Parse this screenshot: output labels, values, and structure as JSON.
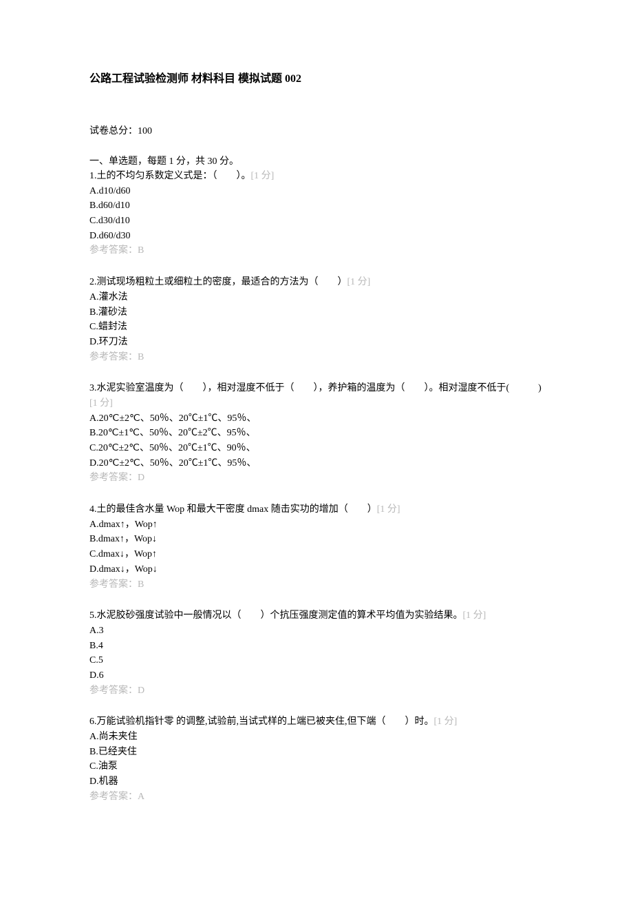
{
  "title": "公路工程试验检测师 材料科目 模拟试题 002",
  "totalScore": "试卷总分：100",
  "sectionHeader": "一、单选题，每题 1 分，共 30 分。",
  "questions": [
    {
      "text": "1.土的不均匀系数定义式是：（　　）。",
      "score": "[1 分]",
      "options": [
        "A.d10/d60",
        "B.d60/d10",
        "C.d30/d10",
        "D.d60/d30"
      ],
      "answer": "参考答案：B"
    },
    {
      "text": "2.测试现场粗粒土或细粒土的密度，最适合的方法为（　　）",
      "score": "[1 分]",
      "options": [
        "A.灌水法",
        "B.灌砂法",
        "C.蜡封法",
        "D.环刀法"
      ],
      "answer": "参考答案：B"
    },
    {
      "text": "3.水泥实验室温度为（　　），相对湿度不低于（　　），养护箱的温度为（　　）。相对湿度不低于(　　　)",
      "score": "[1 分]",
      "options": [
        "A.20℃±2℃、50％、20℃±1℃、95％、",
        "B.20℃±1℃、50％、20℃±2℃、95％、",
        "C.20℃±2℃、50％、20℃±1℃、90％、",
        "D.20℃±2℃、50％、20℃±1℃、95％、"
      ],
      "answer": "参考答案：D"
    },
    {
      "text": "4.土的最佳含水量 Wop 和最大干密度 dmax 随击实功的增加（　　）",
      "score": "[1 分]",
      "options": [
        "A.dmax↑，Wop↑",
        "B.dmax↑，Wop↓",
        "C.dmax↓，Wop↑",
        "D.dmax↓，Wop↓"
      ],
      "answer": "参考答案：B"
    },
    {
      "text": "5.水泥胶砂强度试验中一般情况以（　　）个抗压强度测定值的算术平均值为实验结果。",
      "score": "[1 分]",
      "options": [
        "A.3",
        "B.4",
        "C.5",
        "D.6"
      ],
      "answer": "参考答案：D"
    },
    {
      "text": "6.万能试验机指针零 的调整,试验前,当试式样的上端已被夹住,但下端（　　）时。",
      "score": "[1 分]",
      "options": [
        "A.尚未夹住",
        "B.已经夹住",
        "C.油泵",
        "D.机器"
      ],
      "answer": "参考答案：A"
    }
  ],
  "colors": {
    "textPrimary": "#000000",
    "textMuted": "#b8b8b8",
    "background": "#ffffff"
  },
  "typography": {
    "titleFontSize": 16,
    "bodyFontSize": 14,
    "lineHeight": 1.55,
    "fontFamily": "SimSun"
  }
}
